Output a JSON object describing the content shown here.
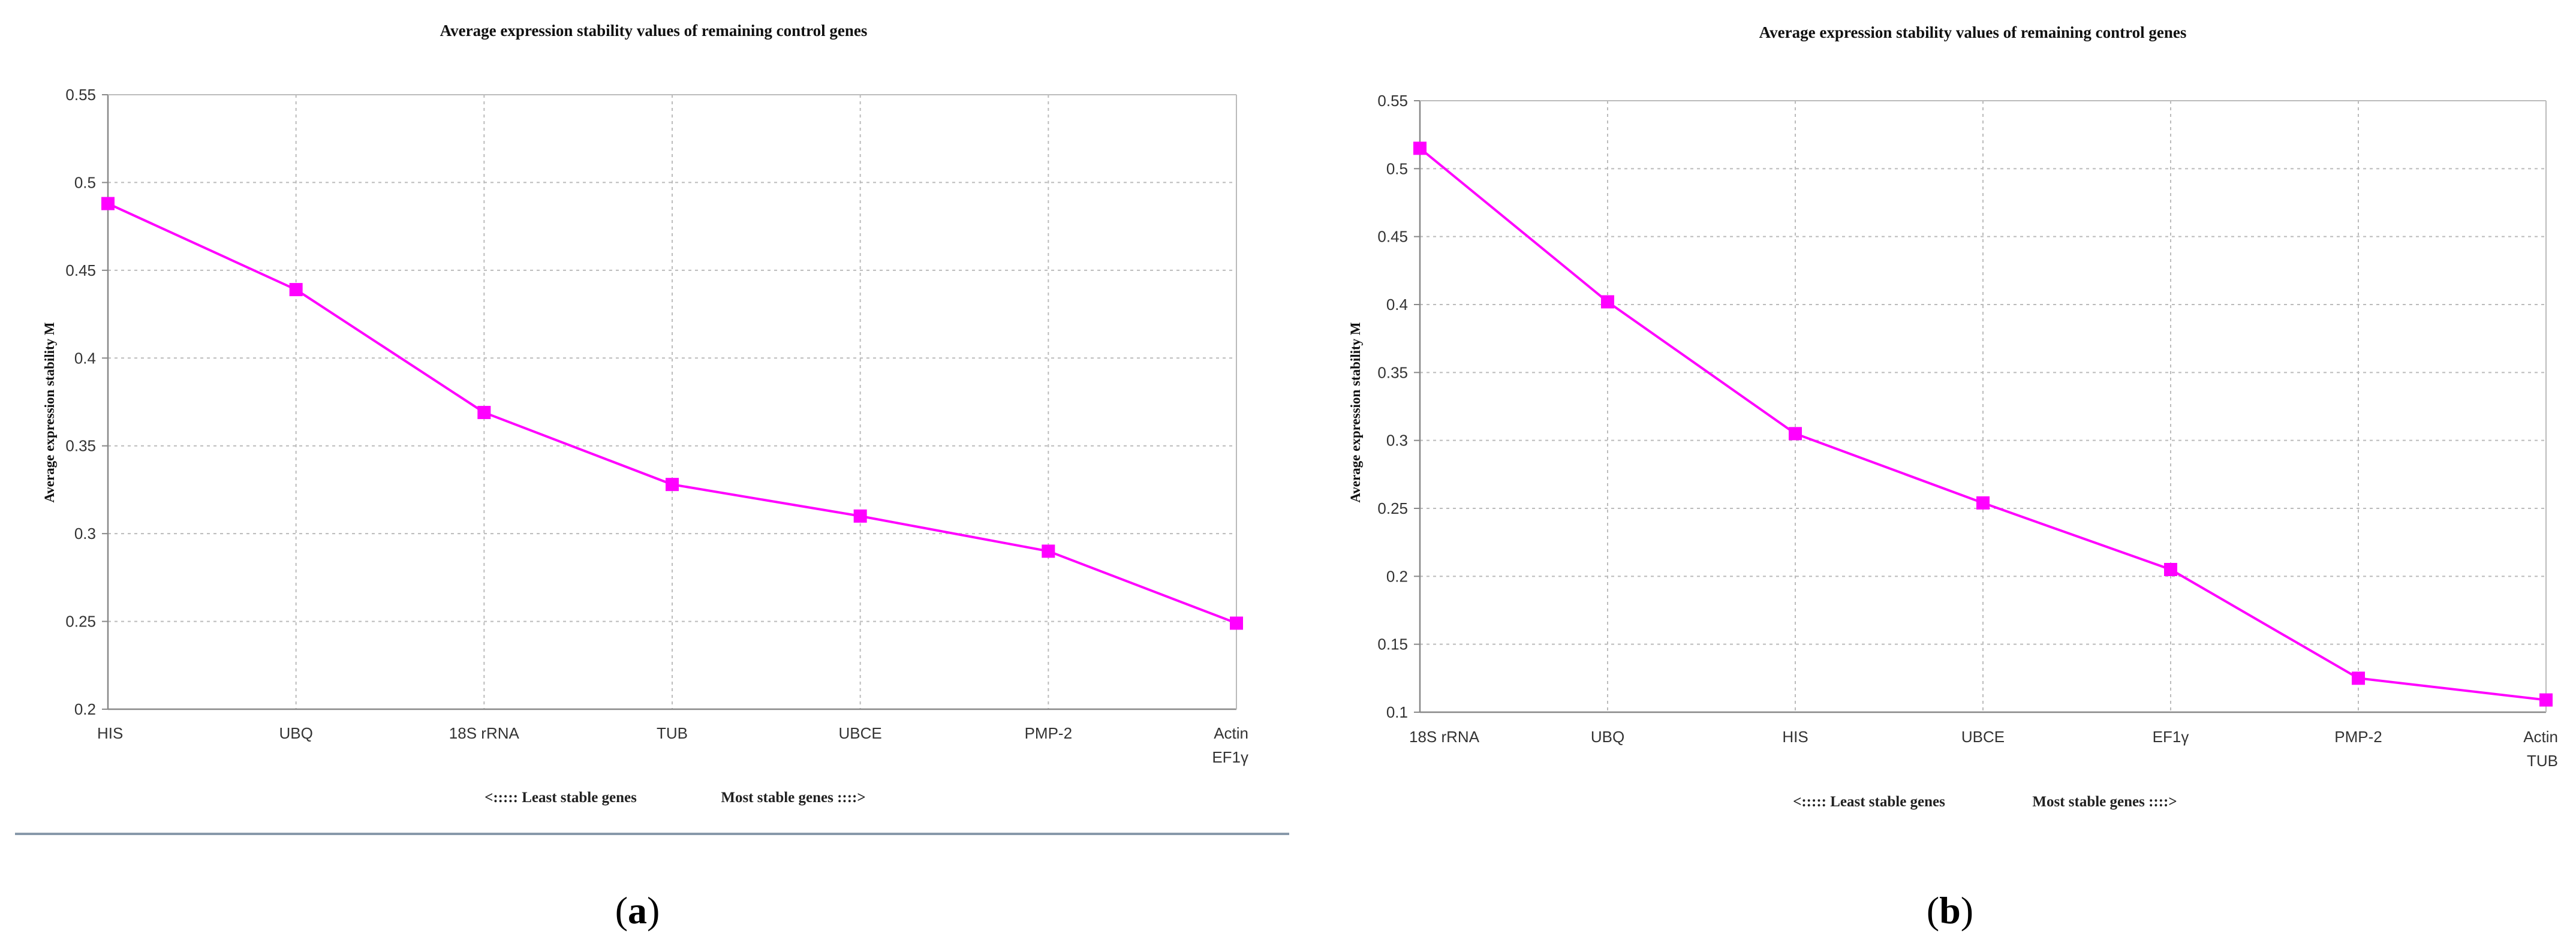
{
  "colors": {
    "series": "#ff00ff",
    "grid": "#bbbbbb",
    "axis": "#888888",
    "divider": "#8899aa"
  },
  "chart_data": [
    {
      "type": "line",
      "panel_label": "a",
      "title": "Average expression stability values of remaining control genes",
      "ylabel": "Average expression stability M",
      "categories": [
        "HIS",
        "UBQ",
        "18S rRNA",
        "TUB",
        "UBCE",
        "PMP-2",
        "Actin\nEF1γ"
      ],
      "values": [
        0.488,
        0.439,
        0.369,
        0.328,
        0.31,
        0.29,
        0.249
      ],
      "ylim": [
        0.2,
        0.55
      ],
      "yticks": [
        "0.2",
        "0.25",
        "0.3",
        "0.35",
        "0.4",
        "0.45",
        "0.5",
        "0.55"
      ],
      "legend_left": "<:::::  Least stable genes",
      "legend_right": "Most stable genes ::::>",
      "grid": true
    },
    {
      "type": "line",
      "panel_label": "b",
      "title": "Average expression stability values of remaining control genes",
      "ylabel": "Average expression stability M",
      "categories": [
        "18S rRNA",
        "UBQ",
        "HIS",
        "UBCE",
        "EF1γ",
        "PMP-2",
        "Actin\nTUB"
      ],
      "values": [
        0.515,
        0.402,
        0.305,
        0.254,
        0.205,
        0.125,
        0.109
      ],
      "ylim": [
        0.1,
        0.55
      ],
      "yticks": [
        "0.1",
        "0.15",
        "0.2",
        "0.25",
        "0.3",
        "0.35",
        "0.4",
        "0.45",
        "0.5",
        "0.55"
      ],
      "legend_left": "<:::::  Least stable genes",
      "legend_right": "Most stable genes ::::>",
      "grid": true
    }
  ]
}
